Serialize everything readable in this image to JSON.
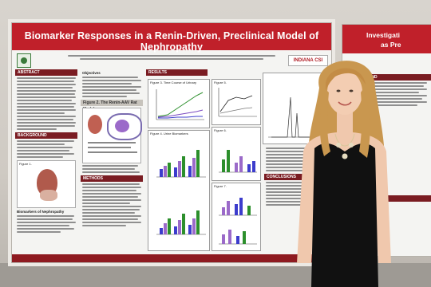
{
  "main_poster": {
    "title": "Biomarker Responses in a Renin-Driven, Preclinical Model of Nephropathy",
    "logo_right_text": "INDIANA CSI",
    "sections": {
      "abstract": "ABSTRACT",
      "background": "BACKGROUND",
      "biomarkers": "Biomarkers of Nephropathy",
      "objectives": "Objectives",
      "figure2": "Figure 2. The Renin-AAV Rat Model",
      "method": "METHODS",
      "results": "RESULTS",
      "conclusion": "CONCLUSIONS"
    },
    "figure_labels": {
      "fig1": "Figure 1.",
      "fig3": "Figure 3. Time Course of Urinary",
      "fig4": "Figure 4. Urine Biomarkers",
      "fig5": "Figure 5.",
      "fig6": "Figure 6.",
      "fig7": "Figure 7."
    }
  },
  "side_poster": {
    "title_line1": "Investigati",
    "title_line2": "as Pre",
    "sections": {
      "background": "BACKGROUND",
      "conclusion": "CONCLUSION"
    }
  },
  "colors": {
    "banner": "#c0202a",
    "section_header": "#7a1c22",
    "dress": "#111111",
    "hair": "#c9974f"
  }
}
